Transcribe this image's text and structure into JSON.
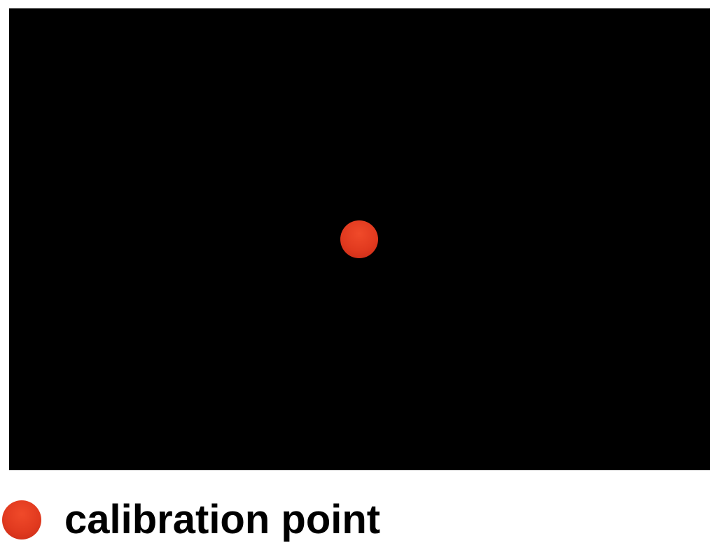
{
  "legend": {
    "label": "calibration point"
  },
  "colors": {
    "screen_background": "#000000",
    "page_background": "#ffffff",
    "calibration_point": "#e13a1f"
  },
  "icons": {
    "calibration_point": "calibration-point-icon",
    "legend_marker": "legend-dot-icon"
  }
}
